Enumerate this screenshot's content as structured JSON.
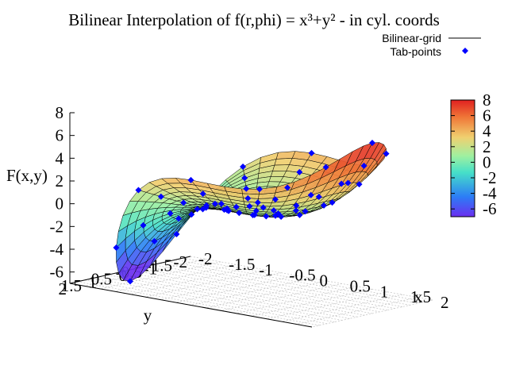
{
  "chart_data": {
    "type": "surface3d",
    "title": "Bilinear Interpolation of f(r,phi) = x³+y² - in cyl. coords",
    "function": "x³+y²",
    "coordinates": "cylindrical",
    "xlabel": "x",
    "ylabel": "y",
    "zlabel": "F(x,y)",
    "x_ticks": [
      "-2",
      "-1.5",
      "-1",
      "-0.5",
      "0",
      "0.5",
      "1",
      "1.5",
      "2"
    ],
    "y_ticks": [
      "-2",
      "-1.5",
      "-1",
      "-0.5",
      "0",
      "0.5",
      "1",
      "1.5",
      "2"
    ],
    "z_ticks": [
      "-6",
      "-4",
      "-2",
      "0",
      "2",
      "4",
      "6",
      "8"
    ],
    "xlim": [
      -2,
      2
    ],
    "ylim": [
      -2,
      2
    ],
    "zlim": [
      -7,
      8
    ],
    "colorbar": {
      "ticks": [
        "-6",
        "-4",
        "-2",
        "0",
        "2",
        "4",
        "6",
        "8"
      ],
      "range": [
        -7,
        8
      ],
      "colors": [
        "#6b2ff0",
        "#2c7cf6",
        "#46e0c8",
        "#9ff0a0",
        "#f0d070",
        "#f07838",
        "#e02020"
      ]
    },
    "tabulated_points": {
      "r": [
        0.4,
        0.8,
        1.2,
        1.6,
        2.0
      ],
      "phi_deg": [
        0,
        30,
        60,
        90,
        120,
        150,
        180,
        210,
        240,
        270,
        300,
        330
      ]
    },
    "series": [
      {
        "name": "Bilinear-grid",
        "style": "surface",
        "color": "#000000"
      },
      {
        "name": "Tab-points",
        "style": "points",
        "color": "#0000ff"
      }
    ],
    "grid": true,
    "legend": "top-right"
  }
}
